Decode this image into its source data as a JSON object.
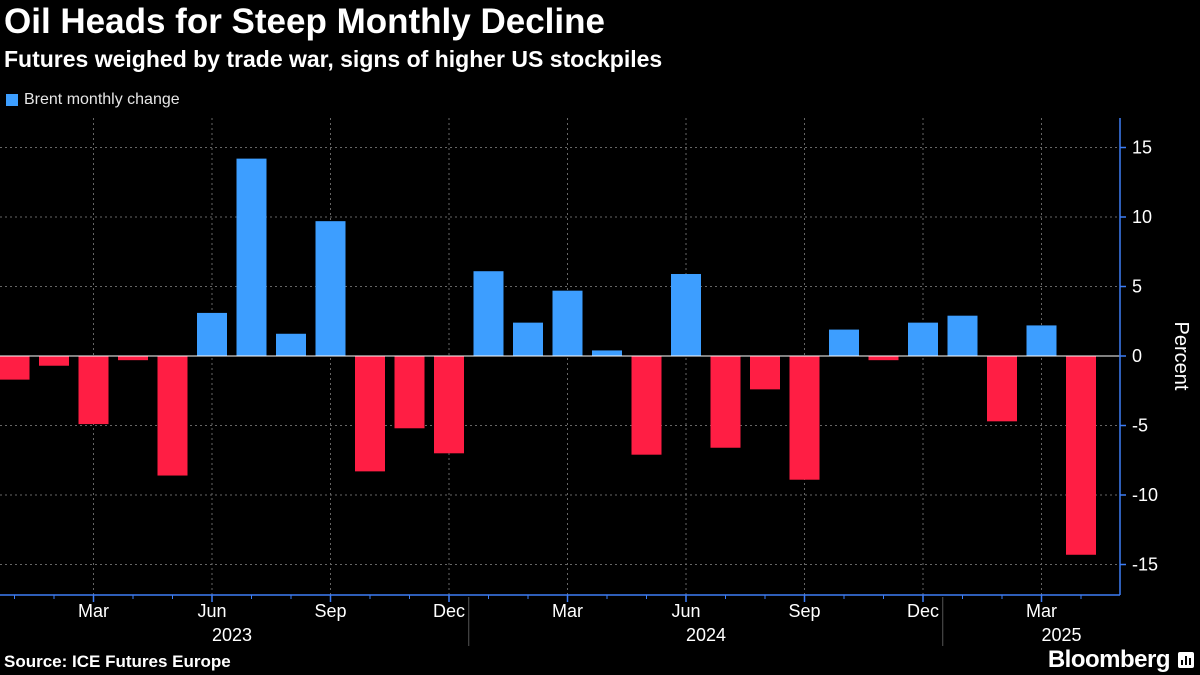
{
  "title": "Oil Heads for Steep Monthly Decline",
  "subtitle": "Futures weighed by trade war, signs of higher US stockpiles",
  "source": "Source: ICE Futures Europe",
  "brand": "Bloomberg",
  "colors": {
    "positive": "#3d9eff",
    "negative": "#ff1e44",
    "grid": "#666666",
    "axis": "#3d7df5"
  },
  "chart_data": {
    "type": "bar",
    "title": "Oil Heads for Steep Monthly Decline",
    "subtitle": "Futures weighed by trade war, signs of higher US stockpiles",
    "legend": [
      "Brent monthly change"
    ],
    "ylabel": "Percent",
    "ylim": [
      -17,
      17
    ],
    "yticks": [
      15,
      10,
      5,
      0,
      -5,
      -10,
      -15
    ],
    "categories": [
      "2023-01",
      "2023-02",
      "2023-03",
      "2023-04",
      "2023-05",
      "2023-06",
      "2023-07",
      "2023-08",
      "2023-09",
      "2023-10",
      "2023-11",
      "2023-12",
      "2024-01",
      "2024-02",
      "2024-03",
      "2024-04",
      "2024-05",
      "2024-06",
      "2024-07",
      "2024-08",
      "2024-09",
      "2024-10",
      "2024-11",
      "2024-12",
      "2025-01",
      "2025-02",
      "2025-03",
      "2025-04"
    ],
    "values": [
      -1.7,
      -0.7,
      -4.9,
      -0.3,
      -8.6,
      3.1,
      14.2,
      1.6,
      9.7,
      -8.3,
      -5.2,
      -7.0,
      6.1,
      2.4,
      4.7,
      0.4,
      -7.1,
      5.9,
      -6.6,
      -2.4,
      -8.9,
      1.9,
      -0.3,
      2.4,
      2.9,
      -4.7,
      2.2,
      -14.3
    ],
    "xticks": [
      {
        "label": "Mar",
        "index": 2
      },
      {
        "label": "Jun",
        "index": 5
      },
      {
        "label": "Sep",
        "index": 8
      },
      {
        "label": "Dec",
        "index": 11
      },
      {
        "label": "Mar",
        "index": 14
      },
      {
        "label": "Jun",
        "index": 17
      },
      {
        "label": "Sep",
        "index": 20
      },
      {
        "label": "Dec",
        "index": 23
      },
      {
        "label": "Mar",
        "index": 26
      }
    ],
    "years": [
      {
        "label": "2023",
        "index": 5
      },
      {
        "label": "2024",
        "index": 17
      },
      {
        "label": "2025",
        "index": 26
      }
    ]
  }
}
